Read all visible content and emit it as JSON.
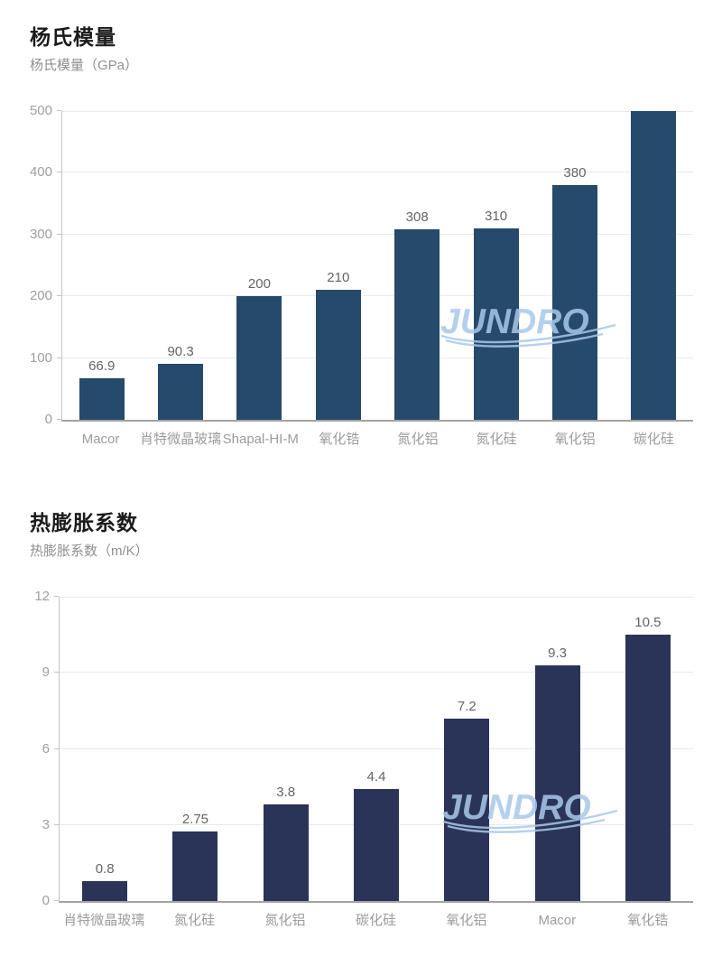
{
  "watermark": {
    "text": "JUNDRO",
    "color": "#a9c8ea"
  },
  "chart_data": [
    {
      "type": "bar",
      "title": "杨氏模量",
      "subtitle": "杨氏模量（GPa）",
      "xlabel": "",
      "ylabel": "杨氏模量（GPa）",
      "categories": [
        "Macor",
        "肖特微晶玻璃",
        "Shapal-HI-M",
        "氧化锆",
        "氮化铝",
        "氮化硅",
        "氧化铝",
        "碳化硅"
      ],
      "values": [
        66.9,
        90.3,
        200,
        210,
        308,
        310,
        380,
        500
      ],
      "value_labels": [
        "66.9",
        "90.3",
        "200",
        "210",
        "308",
        "310",
        "380",
        ""
      ],
      "ylim": [
        0,
        500
      ],
      "yticks": [
        0,
        100,
        200,
        300,
        400,
        500
      ],
      "grid": true,
      "legend": "none",
      "bar_color": "#254a6b"
    },
    {
      "type": "bar",
      "title": "热膨胀系数",
      "subtitle": "热膨胀系数（m/K）",
      "xlabel": "",
      "ylabel": "热膨胀系数（m/K）",
      "categories": [
        "肖特微晶玻璃",
        "氮化硅",
        "氮化铝",
        "碳化硅",
        "氧化铝",
        "Macor",
        "氧化锆"
      ],
      "values": [
        0.8,
        2.75,
        3.8,
        4.4,
        7.2,
        9.3,
        10.5
      ],
      "value_labels": [
        "0.8",
        "2.75",
        "3.8",
        "4.4",
        "7.2",
        "9.3",
        "10.5"
      ],
      "ylim": [
        0,
        12
      ],
      "yticks": [
        0,
        3,
        6,
        9,
        12
      ],
      "grid": true,
      "legend": "none",
      "bar_color": "#2a3459"
    }
  ]
}
